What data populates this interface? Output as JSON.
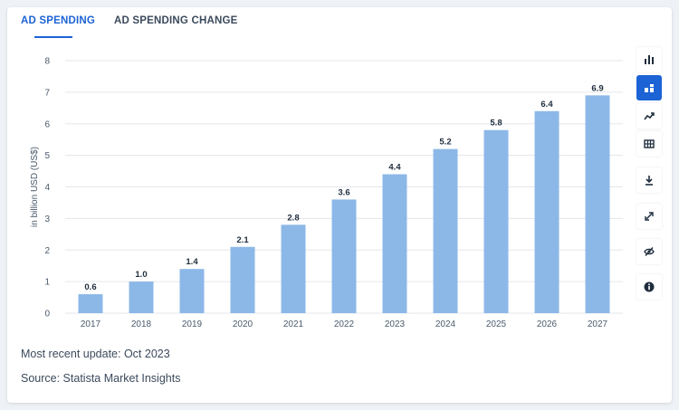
{
  "tabs": [
    {
      "label": "AD SPENDING",
      "active": true
    },
    {
      "label": "AD SPENDING CHANGE",
      "active": false
    }
  ],
  "toolbar": [
    {
      "icon": "bar-chart-icon",
      "active": false
    },
    {
      "icon": "stacked-bar-icon",
      "active": true
    },
    {
      "icon": "line-chart-icon",
      "active": false
    },
    {
      "icon": "table-icon",
      "active": false
    },
    {
      "icon": "download-icon",
      "active": false
    },
    {
      "icon": "fullscreen-icon",
      "active": false
    },
    {
      "icon": "hide-icon",
      "active": false
    },
    {
      "icon": "info-icon",
      "active": false
    }
  ],
  "footer": {
    "update": "Most recent update: Oct 2023",
    "source": "Source: Statista Market Insights"
  },
  "colors": {
    "bar": "#8cb8e8",
    "accent": "#1c63d5",
    "grid": "#e3e7ec",
    "text": "#3b4a5c"
  },
  "chart_data": {
    "type": "bar",
    "categories": [
      "2017",
      "2018",
      "2019",
      "2020",
      "2021",
      "2022",
      "2023",
      "2024",
      "2025",
      "2026",
      "2027"
    ],
    "values": [
      0.6,
      1.0,
      1.4,
      2.1,
      2.8,
      3.6,
      4.4,
      5.2,
      5.8,
      6.4,
      6.9
    ],
    "value_labels": [
      "0.6",
      "1.0",
      "1.4",
      "2.1",
      "2.8",
      "3.6",
      "4.4",
      "5.2",
      "5.8",
      "6.4",
      "6.9"
    ],
    "ylabel": "in billion USD (US$)",
    "ylim": [
      0,
      8
    ],
    "yticks": [
      0,
      1,
      2,
      3,
      4,
      5,
      6,
      7,
      8
    ],
    "grid": true
  }
}
